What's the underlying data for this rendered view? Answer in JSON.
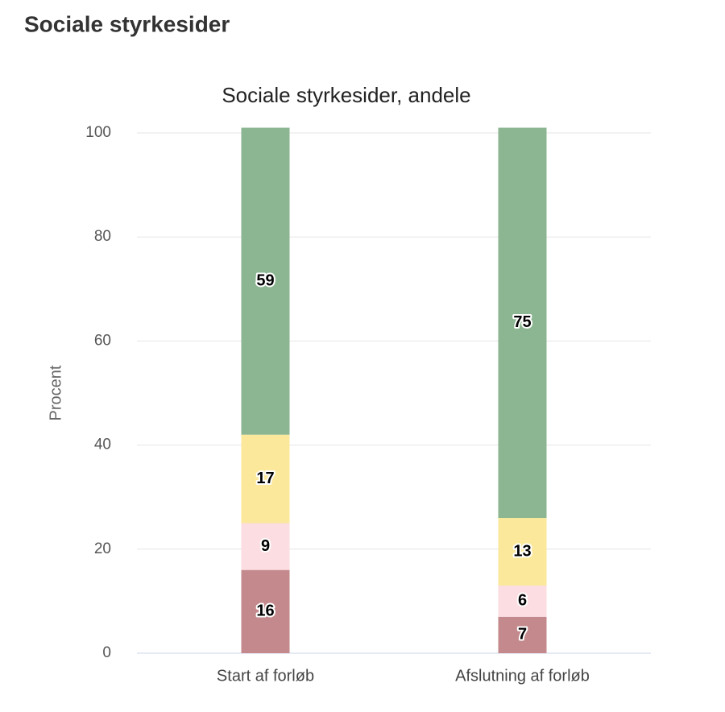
{
  "page_title": "Sociale styrkesider",
  "chart_data": {
    "type": "stacked_bar",
    "title": "Sociale styrkesider, andele",
    "y_label": "Procent",
    "categories": [
      "Start af forløb",
      "Afslutning af forløb"
    ],
    "series": [
      {
        "color": "#c4898c",
        "values": [
          16,
          7
        ]
      },
      {
        "color": "#fbdde2",
        "values": [
          9,
          6
        ]
      },
      {
        "color": "#fbe89a",
        "values": [
          17,
          13
        ]
      },
      {
        "color": "#8bb691",
        "values": [
          59,
          75
        ]
      }
    ],
    "ylim": [
      0,
      100
    ],
    "yticks": [
      0,
      20,
      40,
      60,
      80,
      100
    ],
    "grid": true
  }
}
